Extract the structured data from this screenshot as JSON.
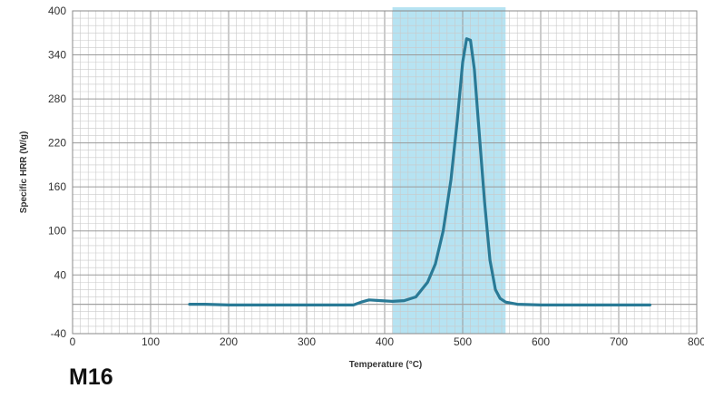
{
  "chart_data": {
    "type": "line",
    "panel_label": "M16",
    "xlabel": "Temperature (°C)",
    "ylabel": "Specific HRR (W/g)",
    "xlim": [
      0,
      800
    ],
    "ylim": [
      -40,
      400
    ],
    "xticks": [
      0,
      100,
      200,
      300,
      400,
      500,
      600,
      700,
      800
    ],
    "xtick_labels": [
      "0",
      "100",
      "200",
      "300",
      "400",
      "500",
      "600",
      "700",
      "800"
    ],
    "yticks": [
      -40,
      40,
      100,
      160,
      220,
      280,
      340,
      400
    ],
    "ytick_labels": [
      "-40",
      "40",
      "100",
      "160",
      "220",
      "280",
      "340",
      "400"
    ],
    "grid": true,
    "highlight_band": {
      "x_range": [
        410,
        555
      ],
      "color": "#a9def0"
    },
    "line_color": "#2a7a96",
    "series": [
      {
        "x": [
          150,
          170,
          200,
          250,
          300,
          340,
          360,
          370,
          380,
          395,
          410,
          425,
          440,
          455,
          465,
          475,
          485,
          493,
          500,
          505,
          510,
          515,
          520,
          528,
          535,
          542,
          548,
          555,
          570,
          600,
          650,
          700,
          740
        ],
        "y": [
          0,
          0,
          -1,
          -1,
          -1,
          -1,
          -1,
          3,
          6,
          5,
          4,
          5,
          10,
          30,
          55,
          100,
          170,
          250,
          330,
          362,
          360,
          320,
          250,
          140,
          60,
          20,
          8,
          3,
          0,
          -1,
          -1,
          -1,
          -1
        ]
      }
    ]
  }
}
